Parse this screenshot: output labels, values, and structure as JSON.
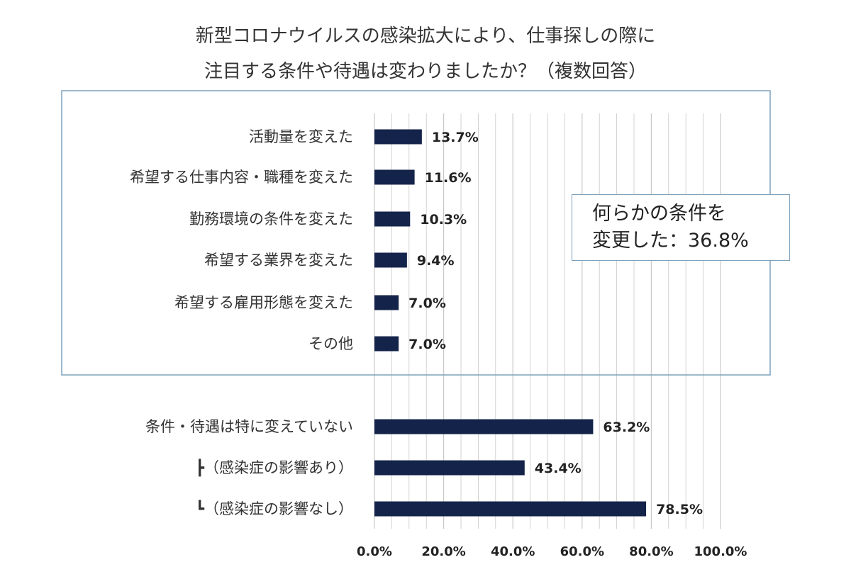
{
  "title": {
    "line1": "新型コロナウイルスの感染拡大により、仕事探しの際に",
    "line2": "注目する条件や待遇は変わりましたか？（複数回答）"
  },
  "callout": {
    "line1": "何らかの条件を",
    "line2": "変更した：36.8%"
  },
  "colors": {
    "bar": "#14234a",
    "grid": "#c8c8c8",
    "box": "#7ea1bc"
  },
  "chart_data": {
    "type": "bar",
    "orientation": "horizontal",
    "title": "新型コロナウイルスの感染拡大により、仕事探しの際に注目する条件や待遇は変わりましたか？（複数回答）",
    "xlim": [
      0,
      100
    ],
    "grid": true,
    "x_ticks": [
      "0.0%",
      "20.0%",
      "40.0%",
      "60.0%",
      "80.0%",
      "100.0%"
    ],
    "categories": [
      "活動量を変えた",
      "希望する仕事内容・職種を変えた",
      "勤務環境の条件を変えた",
      "希望する業界を変えた",
      "希望する雇用形態を変えた",
      "その他",
      "条件・待遇は特に変えていない",
      "┣（感染症の影響あり）",
      "┗（感染症の影響なし）"
    ],
    "values": [
      13.7,
      11.6,
      10.3,
      9.4,
      7.0,
      7.0,
      63.2,
      43.4,
      78.5
    ],
    "value_labels": [
      "13.7%",
      "11.6%",
      "10.3%",
      "9.4%",
      "7.0%",
      "7.0%",
      "63.2%",
      "43.4%",
      "78.5%"
    ]
  }
}
